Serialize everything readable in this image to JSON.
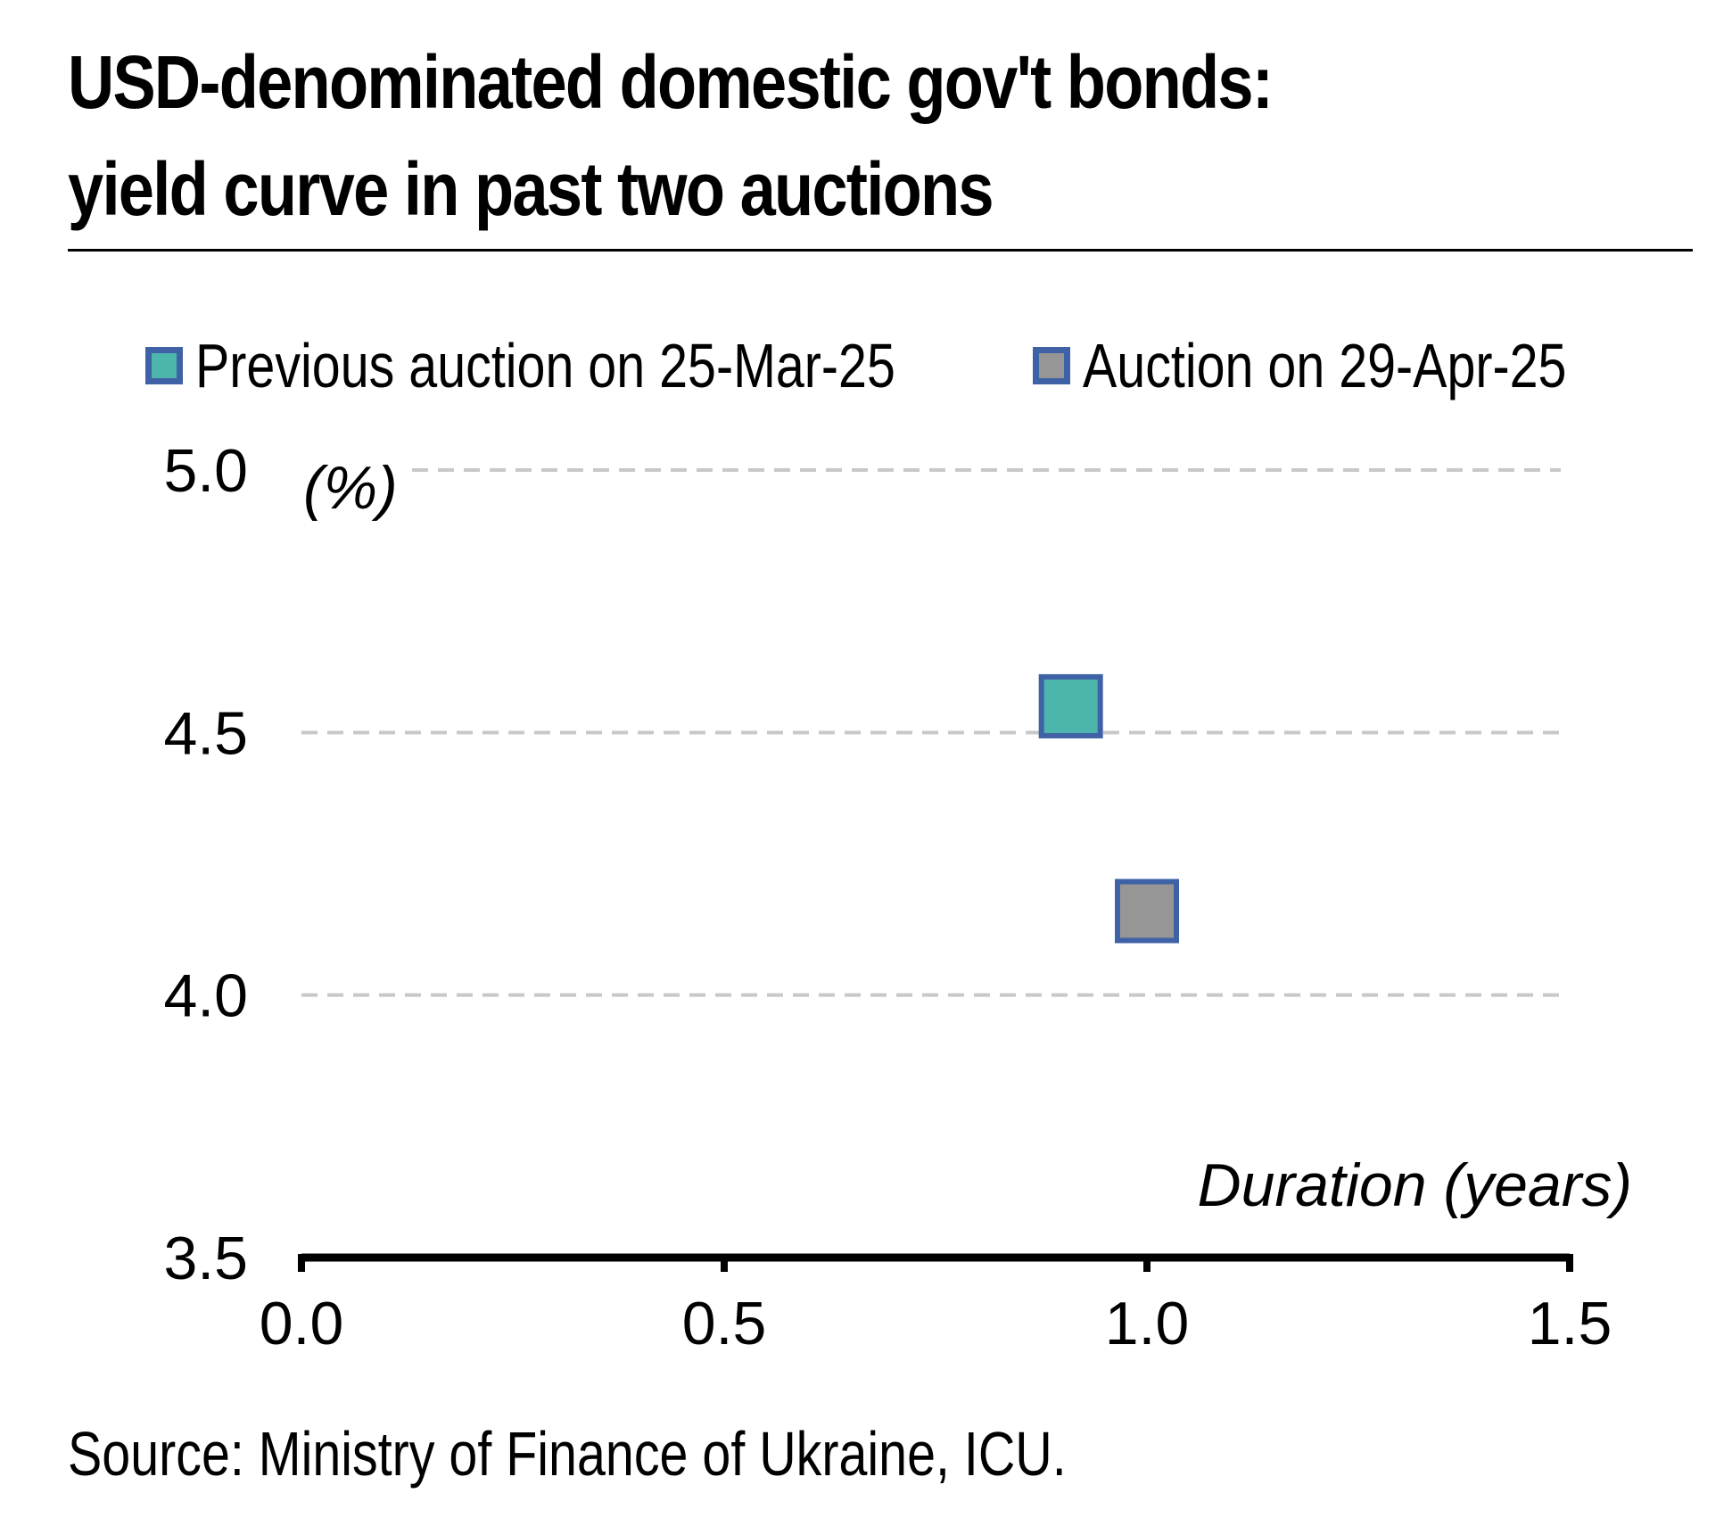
{
  "chart_data": {
    "type": "scatter",
    "title": "USD-denominated domestic gov't bonds: yield curve in past two auctions",
    "title_lines": [
      "USD-denominated domestic gov't bonds:",
      "yield curve in past two auctions"
    ],
    "xlabel": "Duration (years)",
    "ylabel": "(%)",
    "xlim": [
      0.0,
      1.5
    ],
    "ylim": [
      3.5,
      5.0
    ],
    "xticks": [
      "0.0",
      "0.5",
      "1.0",
      "1.5"
    ],
    "yticks": [
      "3.5",
      "4.0",
      "4.5",
      "5.0"
    ],
    "grid": "horizontal dashed",
    "legend_position": "top",
    "marker_border_color": "#3F62A6",
    "series": [
      {
        "name": "Previous auction on 25-Mar-25",
        "color": "#4DB6AC",
        "points": [
          {
            "x": 0.91,
            "y": 4.55
          }
        ]
      },
      {
        "name": "Auction on 29-Apr-25",
        "color": "#969696",
        "points": [
          {
            "x": 1.0,
            "y": 4.16
          }
        ]
      }
    ]
  },
  "source": "Source: Ministry of Finance of Ukraine, ICU."
}
